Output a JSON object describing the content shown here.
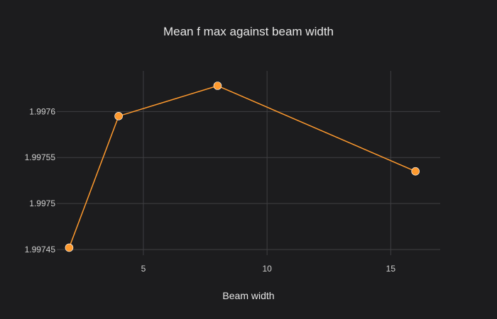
{
  "chart_data": {
    "type": "line",
    "title": "Mean f max against beam width",
    "xlabel": "Beam width",
    "ylabel": "",
    "x": [
      2,
      4,
      8,
      16
    ],
    "series": [
      {
        "values": [
          1.997452,
          1.997595,
          1.997628,
          1.997535
        ],
        "color": "#ff9a2e"
      }
    ],
    "xlim": [
      1.5,
      17
    ],
    "ylim": [
      1.99745,
      1.997628
    ],
    "x_ticks": [
      5,
      10,
      15
    ],
    "x_tick_labels": [
      "5",
      "10",
      "15"
    ],
    "y_ticks": [
      1.99745,
      1.9975,
      1.99755,
      1.9976
    ],
    "y_tick_labels": [
      "1.99745",
      "1.9975",
      "1.99755",
      "1.9976"
    ],
    "grid": true,
    "legend": "none",
    "background": "#1c1c1e"
  }
}
